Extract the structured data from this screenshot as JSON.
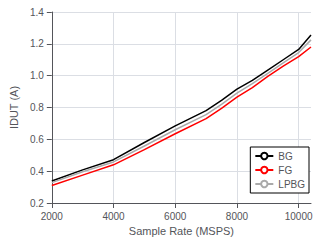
{
  "chart_data": {
    "type": "line",
    "xlabel": "Sample Rate (MSPS)",
    "ylabel": "IDUT (A)",
    "x": [
      2000,
      3000,
      4000,
      5000,
      6000,
      7000,
      7500,
      8000,
      8500,
      9000,
      9500,
      10000,
      10400
    ],
    "series": [
      {
        "name": "BG",
        "color": "#000000",
        "values": [
          0.338,
          0.408,
          0.472,
          0.58,
          0.685,
          0.78,
          0.845,
          0.915,
          0.97,
          1.035,
          1.1,
          1.165,
          1.255
        ]
      },
      {
        "name": "FG",
        "color": "#ff0000",
        "values": [
          0.31,
          0.375,
          0.44,
          0.535,
          0.635,
          0.73,
          0.795,
          0.865,
          0.925,
          0.995,
          1.06,
          1.12,
          1.18
        ]
      },
      {
        "name": "LPBG",
        "color": "#aaaaaa",
        "values": [
          0.328,
          0.396,
          0.458,
          0.558,
          0.66,
          0.755,
          0.82,
          0.89,
          0.95,
          1.015,
          1.08,
          1.145,
          1.225
        ]
      }
    ],
    "xlim": [
      2000,
      10400
    ],
    "ylim": [
      0.2,
      1.4
    ],
    "xticks": [
      2000,
      4000,
      6000,
      8000,
      10000
    ],
    "yticks": [
      0.2,
      0.4,
      0.6,
      0.8,
      {
        "value": 1.0,
        "label": "1.0"
      },
      1.2,
      1.4
    ],
    "grid": true,
    "legend": "lower right"
  }
}
